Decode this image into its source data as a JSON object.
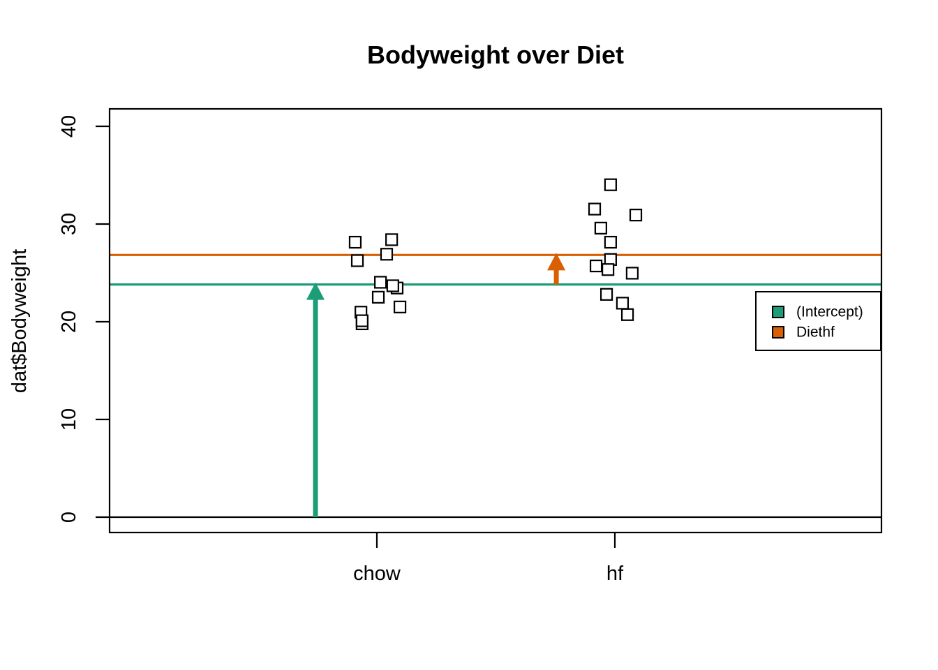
{
  "chart_data": {
    "type": "scatter",
    "title": "Bodyweight over Diet",
    "xlabel": "",
    "ylabel": "dat$Bodyweight",
    "categories": [
      "chow",
      "hf"
    ],
    "category_positions": [
      1,
      2
    ],
    "yticks": [
      0,
      10,
      20,
      30,
      40
    ],
    "ylim": [
      0,
      40
    ],
    "marker": "open-square",
    "series": [
      {
        "name": "chow",
        "points": [
          {
            "x": 1.097,
            "y": 21.51
          },
          {
            "x": 0.909,
            "y": 28.14
          },
          {
            "x": 1.015,
            "y": 24.04
          },
          {
            "x": 1.085,
            "y": 23.45
          },
          {
            "x": 1.067,
            "y": 23.68
          },
          {
            "x": 0.938,
            "y": 19.79
          },
          {
            "x": 1.062,
            "y": 28.4
          },
          {
            "x": 0.933,
            "y": 20.98
          },
          {
            "x": 1.006,
            "y": 22.51
          },
          {
            "x": 0.938,
            "y": 20.1
          },
          {
            "x": 1.041,
            "y": 26.91
          },
          {
            "x": 0.918,
            "y": 26.25
          }
        ]
      },
      {
        "name": "hf",
        "points": [
          {
            "x": 1.921,
            "y": 25.71
          },
          {
            "x": 1.982,
            "y": 26.37
          },
          {
            "x": 1.965,
            "y": 22.8
          },
          {
            "x": 1.971,
            "y": 25.34
          },
          {
            "x": 2.073,
            "y": 24.97
          },
          {
            "x": 1.982,
            "y": 28.14
          },
          {
            "x": 1.941,
            "y": 29.58
          },
          {
            "x": 2.088,
            "y": 30.92
          },
          {
            "x": 1.982,
            "y": 34.02
          },
          {
            "x": 2.032,
            "y": 21.9
          },
          {
            "x": 1.915,
            "y": 31.53
          },
          {
            "x": 2.053,
            "y": 20.73
          }
        ]
      }
    ],
    "baseline": {
      "value": 0,
      "color": "#000000"
    },
    "mean_lines": [
      {
        "name": "(Intercept)",
        "value": 23.813,
        "color": "#1B9E77"
      },
      {
        "name": "Diethf",
        "value": 26.834,
        "color": "#D95F02"
      }
    ],
    "arrows": [
      {
        "name": "intercept-arrow",
        "x": 0.742,
        "from": 0,
        "to": 23.813,
        "color": "#1B9E77"
      },
      {
        "name": "diethf-arrow",
        "x": 1.754,
        "from": 23.813,
        "to": 26.834,
        "color": "#D95F02"
      }
    ],
    "legend": {
      "position": "right",
      "items": [
        {
          "label": "(Intercept)",
          "color": "#1B9E77"
        },
        {
          "label": "Diethf",
          "color": "#D95F02"
        }
      ]
    }
  }
}
